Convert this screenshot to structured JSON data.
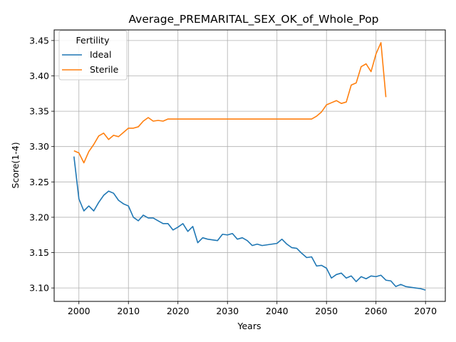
{
  "chart_data": {
    "type": "line",
    "title": "Average_PREMARITAL_SEX_OK_of_Whole_Pop",
    "xlabel": "Years",
    "ylabel": "Score(1-4)",
    "xlim": [
      1995,
      2074
    ],
    "ylim": [
      3.081,
      3.465
    ],
    "xticks": [
      2000,
      2010,
      2020,
      2030,
      2040,
      2050,
      2060,
      2070
    ],
    "xtick_labels": [
      "2000",
      "2010",
      "2020",
      "2030",
      "2040",
      "2050",
      "2060",
      "2070"
    ],
    "yticks": [
      3.1,
      3.15,
      3.2,
      3.25,
      3.3,
      3.35,
      3.4,
      3.45
    ],
    "ytick_labels": [
      "3.10",
      "3.15",
      "3.20",
      "3.25",
      "3.30",
      "3.35",
      "3.40",
      "3.45"
    ],
    "grid": true,
    "legend": {
      "title": "Fertility",
      "position": "top-left"
    },
    "series": [
      {
        "name": "Ideal",
        "color": "#1f77b4",
        "x": [
          1999,
          2000,
          2001,
          2002,
          2003,
          2004,
          2005,
          2006,
          2007,
          2008,
          2009,
          2010,
          2011,
          2012,
          2013,
          2014,
          2015,
          2016,
          2017,
          2018,
          2019,
          2020,
          2021,
          2022,
          2023,
          2024,
          2025,
          2026,
          2027,
          2028,
          2029,
          2030,
          2031,
          2032,
          2033,
          2034,
          2035,
          2036,
          2037,
          2038,
          2039,
          2040,
          2041,
          2042,
          2043,
          2044,
          2045,
          2046,
          2047,
          2048,
          2049,
          2050,
          2051,
          2052,
          2053,
          2054,
          2055,
          2056,
          2057,
          2058,
          2059,
          2060,
          2061,
          2062,
          2063,
          2064,
          2065,
          2066,
          2067,
          2068,
          2069,
          2070
        ],
        "values": [
          3.286,
          3.226,
          3.209,
          3.216,
          3.209,
          3.221,
          3.231,
          3.237,
          3.234,
          3.224,
          3.219,
          3.216,
          3.2,
          3.195,
          3.203,
          3.199,
          3.199,
          3.195,
          3.191,
          3.191,
          3.182,
          3.186,
          3.191,
          3.18,
          3.187,
          3.164,
          3.171,
          3.169,
          3.168,
          3.167,
          3.176,
          3.175,
          3.177,
          3.169,
          3.171,
          3.167,
          3.16,
          3.162,
          3.16,
          3.161,
          3.162,
          3.163,
          3.169,
          3.162,
          3.157,
          3.156,
          3.149,
          3.143,
          3.144,
          3.131,
          3.132,
          3.128,
          3.114,
          3.119,
          3.121,
          3.114,
          3.117,
          3.109,
          3.116,
          3.113,
          3.117,
          3.116,
          3.118,
          3.111,
          3.11,
          3.102,
          3.105,
          3.102,
          3.101,
          3.1,
          3.099,
          3.097
        ]
      },
      {
        "name": "Sterile",
        "color": "#ff7f0e",
        "x": [
          1999,
          2000,
          2001,
          2002,
          2003,
          2004,
          2005,
          2006,
          2007,
          2008,
          2009,
          2010,
          2011,
          2012,
          2013,
          2014,
          2015,
          2016,
          2017,
          2018,
          2019,
          2020,
          2021,
          2022,
          2023,
          2024,
          2025,
          2026,
          2027,
          2028,
          2029,
          2030,
          2031,
          2032,
          2033,
          2034,
          2035,
          2036,
          2037,
          2038,
          2039,
          2040,
          2041,
          2042,
          2043,
          2044,
          2045,
          2046,
          2047,
          2048,
          2049,
          2050,
          2051,
          2052,
          2053,
          2054,
          2055,
          2056,
          2057,
          2058,
          2059,
          2060,
          2061,
          2062
        ],
        "values": [
          3.294,
          3.291,
          3.277,
          3.293,
          3.303,
          3.315,
          3.319,
          3.31,
          3.316,
          3.314,
          3.32,
          3.326,
          3.326,
          3.328,
          3.336,
          3.341,
          3.336,
          3.337,
          3.336,
          3.339,
          3.339,
          3.339,
          3.339,
          3.339,
          3.339,
          3.339,
          3.339,
          3.339,
          3.339,
          3.339,
          3.339,
          3.339,
          3.339,
          3.339,
          3.339,
          3.339,
          3.339,
          3.339,
          3.339,
          3.339,
          3.339,
          3.339,
          3.339,
          3.339,
          3.339,
          3.339,
          3.339,
          3.339,
          3.339,
          3.343,
          3.349,
          3.359,
          3.362,
          3.365,
          3.361,
          3.363,
          3.387,
          3.39,
          3.413,
          3.417,
          3.406,
          3.431,
          3.447,
          3.37
        ]
      }
    ]
  }
}
